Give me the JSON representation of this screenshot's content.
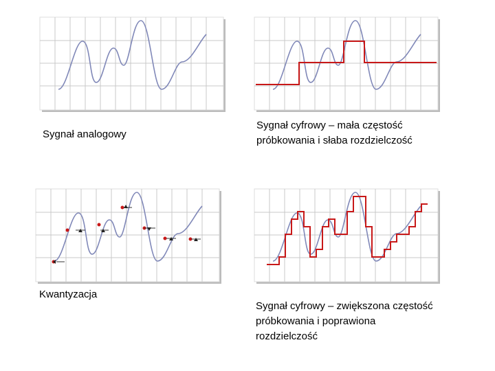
{
  "panels": [
    {
      "caption": [
        "Sygnał analogowy"
      ]
    },
    {
      "caption": [
        "Sygnał cyfrowy – mała częstość",
        "próbkowania i słaba rozdzielczość"
      ]
    },
    {
      "caption": [
        "Kwantyzacja"
      ]
    },
    {
      "caption": [
        "Sygnał cyfrowy – zwiększona częstość",
        "próbkowania i poprawiona",
        "rozdzielczość"
      ]
    }
  ]
}
